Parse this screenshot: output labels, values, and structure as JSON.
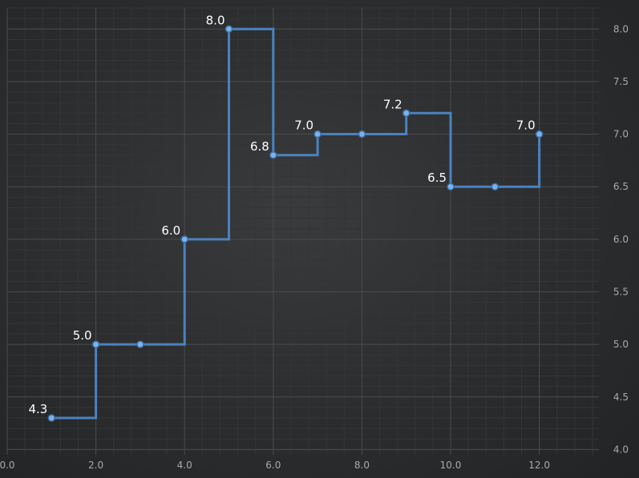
{
  "chart_data": {
    "type": "line",
    "subtype": "step",
    "title": "",
    "xlabel": "",
    "ylabel": "",
    "x": [
      1,
      2,
      3,
      4,
      5,
      6,
      7,
      8,
      9,
      10,
      11,
      12
    ],
    "series": [
      {
        "values": [
          4.3,
          5.0,
          5.0,
          6.0,
          8.0,
          6.8,
          7.0,
          7.0,
          7.2,
          6.5,
          6.5,
          7.0
        ],
        "color": "#4a82c0",
        "marker_color": "#7fb2e6"
      }
    ],
    "data_labels": [
      {
        "x": 1,
        "text": "4.3"
      },
      {
        "x": 2,
        "text": "5.0"
      },
      {
        "x": 4,
        "text": "6.0"
      },
      {
        "x": 5,
        "text": "8.0"
      },
      {
        "x": 6,
        "text": "6.8"
      },
      {
        "x": 7,
        "text": "7.0"
      },
      {
        "x": 9,
        "text": "7.2"
      },
      {
        "x": 10,
        "text": "6.5"
      },
      {
        "x": 12,
        "text": "7.0"
      }
    ],
    "xlim": [
      0,
      13.2
    ],
    "ylim": [
      3.95,
      8.2
    ],
    "x_ticks": [
      0,
      2,
      4,
      6,
      8,
      10,
      12
    ],
    "x_tick_labels": [
      "0.0",
      "2.0",
      "4.0",
      "6.0",
      "8.0",
      "10.0",
      "12.0"
    ],
    "y_ticks": [
      4.0,
      4.5,
      5.0,
      5.5,
      6.0,
      6.5,
      7.0,
      7.5,
      8.0
    ],
    "y_tick_labels": [
      "4.0",
      "4.5",
      "5.0",
      "5.5",
      "6.0",
      "6.5",
      "7.0",
      "7.5",
      "8.0"
    ],
    "x_axis_position": "bottom",
    "y_axis_position": "right",
    "grid": true,
    "legend": "none",
    "colors": {
      "background": "#2b2c2e",
      "grid_major": "#4a4b4d",
      "grid_minor": "#343537",
      "tick_label": "#a8a9ab",
      "data_label": "#ffffff"
    }
  }
}
